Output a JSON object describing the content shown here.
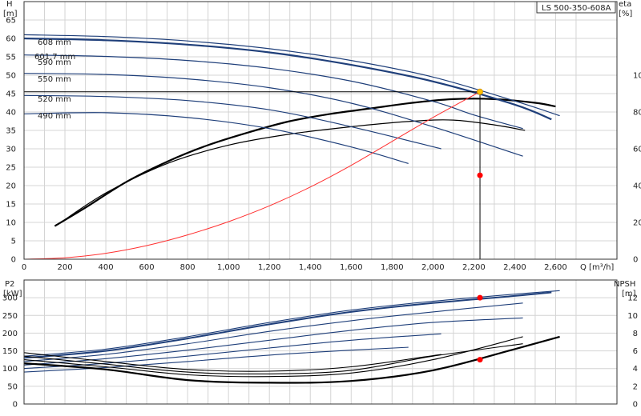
{
  "title_box": "LS 500-350-608A",
  "colors": {
    "curve": "#1f3f7a",
    "efficiency": "#000000",
    "system": "#ff3030",
    "duty_line": "#000000",
    "point_red": "#ff0000",
    "point_yellow": "#ffc000",
    "grid": "#d4d4d4"
  },
  "chart_data": [
    {
      "type": "line",
      "name": "head-efficiency",
      "xlabel": "Q [m³/h]",
      "ylabel_left": "H",
      "ylabel_left_unit": "[m]",
      "ylabel_right": "eta",
      "ylabel_right_unit": "[%]",
      "xlim": [
        0,
        2900
      ],
      "ylim_left": [
        0,
        70
      ],
      "ylim_right": [
        0,
        140
      ],
      "x_ticks": [
        0,
        200,
        400,
        600,
        800,
        1000,
        1200,
        1400,
        1600,
        1800,
        2000,
        2200,
        2400,
        2600
      ],
      "x_tick_labels": [
        "0",
        "200",
        "400",
        "600",
        "800",
        "1,000",
        "1,200",
        "1,400",
        "1,600",
        "1,800",
        "2,000",
        "2,200",
        "2,400",
        "2,600"
      ],
      "y_ticks_left": [
        0,
        5,
        10,
        15,
        20,
        25,
        30,
        35,
        40,
        45,
        50,
        55,
        60,
        65
      ],
      "y_ticks_right": [
        0,
        20,
        40,
        60,
        80,
        100
      ],
      "grid": true,
      "head_curves": [
        {
          "name": "608 mm",
          "x": [
            0,
            400,
            800,
            1200,
            1600,
            2000,
            2400,
            2620
          ],
          "y": [
            61,
            60.5,
            59.3,
            57.2,
            54,
            49.5,
            43,
            39
          ]
        },
        {
          "name": "601.7 mm",
          "x": [
            0,
            400,
            800,
            1200,
            1600,
            2000,
            2400,
            2580
          ],
          "y": [
            60,
            59.5,
            58.3,
            56.2,
            52.8,
            48.3,
            42,
            38
          ]
        },
        {
          "name": "590 mm",
          "x": [
            0,
            400,
            800,
            1200,
            1600,
            2000,
            2200,
            2440
          ],
          "y": [
            55.5,
            55.1,
            54,
            51.9,
            48.4,
            42.9,
            39.2,
            35.5
          ]
        },
        {
          "name": "550 mm",
          "x": [
            0,
            400,
            800,
            1200,
            1600,
            2000,
            2440
          ],
          "y": [
            50.5,
            50.2,
            49,
            46.6,
            42.4,
            36,
            28
          ]
        },
        {
          "name": "520 mm",
          "x": [
            0,
            400,
            800,
            1200,
            1600,
            2040
          ],
          "y": [
            44.5,
            44.2,
            43.1,
            40.6,
            36,
            30
          ]
        },
        {
          "name": "490 mm",
          "x": [
            0,
            400,
            800,
            1200,
            1600,
            1880
          ],
          "y": [
            39.5,
            39.8,
            38.5,
            35.5,
            30.5,
            26
          ]
        }
      ],
      "efficiency_curves": [
        {
          "x": [
            150,
            300,
            500,
            700,
            900,
            1100,
            1300,
            1500,
            1700,
            1900,
            2100,
            2300,
            2500,
            2600
          ],
          "y": [
            9,
            14,
            21,
            26.5,
            31,
            34.5,
            37.5,
            39.5,
            41,
            42.5,
            43.5,
            43.5,
            42.5,
            41.5
          ]
        },
        {
          "x": [
            180,
            400,
            700,
            1000,
            1300,
            1600,
            1900,
            2100,
            2300,
            2450
          ],
          "y": [
            10,
            18,
            26,
            31,
            34,
            36,
            37.5,
            37.8,
            36.5,
            35
          ]
        }
      ],
      "system_curve": {
        "x": [
          0,
          200,
          400,
          600,
          800,
          1000,
          1200,
          1400,
          1600,
          1800,
          2000,
          2230
        ],
        "y": [
          0,
          0.4,
          1.6,
          3.7,
          6.6,
          10.2,
          14.5,
          19.6,
          25.5,
          32,
          38.5,
          45.5
        ]
      },
      "duty_point": {
        "q": 2230,
        "h": 45.5,
        "eta": 45.5
      }
    },
    {
      "type": "line",
      "name": "power-npsh",
      "xlabel": "",
      "ylabel_left": "P2",
      "ylabel_left_unit": "[kW]",
      "ylabel_right": "NPSH",
      "ylabel_right_unit": "[m]",
      "xlim": [
        0,
        2900
      ],
      "ylim_left": [
        0,
        350
      ],
      "ylim_right": [
        0,
        14
      ],
      "y_ticks_left": [
        0,
        50,
        100,
        150,
        200,
        250,
        300
      ],
      "y_ticks_right": [
        0,
        2,
        4,
        6,
        8,
        10,
        12
      ],
      "grid": true,
      "power_curves": [
        {
          "x": [
            0,
            400,
            800,
            1200,
            1600,
            2000,
            2400,
            2620
          ],
          "y": [
            135,
            155,
            190,
            230,
            265,
            290,
            310,
            320
          ]
        },
        {
          "x": [
            0,
            400,
            800,
            1200,
            1600,
            2000,
            2400,
            2580
          ],
          "y": [
            130,
            150,
            185,
            225,
            260,
            285,
            305,
            315
          ]
        },
        {
          "x": [
            0,
            400,
            800,
            1200,
            1600,
            2000,
            2440
          ],
          "y": [
            120,
            140,
            170,
            205,
            235,
            260,
            285
          ]
        },
        {
          "x": [
            0,
            400,
            800,
            1200,
            1600,
            2000,
            2440
          ],
          "y": [
            110,
            128,
            152,
            180,
            208,
            230,
            243
          ]
        },
        {
          "x": [
            0,
            400,
            800,
            1200,
            1600,
            2040
          ],
          "y": [
            100,
            115,
            135,
            158,
            180,
            198
          ]
        },
        {
          "x": [
            0,
            400,
            800,
            1200,
            1600,
            1880
          ],
          "y": [
            90,
            103,
            120,
            138,
            152,
            160
          ]
        }
      ],
      "npsh_curves": [
        {
          "x": [
            0,
            400,
            800,
            1200,
            1600,
            2000,
            2400,
            2620
          ],
          "y": [
            4.6,
            3.9,
            2.7,
            2.4,
            2.6,
            3.8,
            6.2,
            7.6
          ]
        },
        {
          "x": [
            0,
            400,
            800,
            1200,
            1600,
            2000,
            2440
          ],
          "y": [
            5.0,
            4.2,
            3.3,
            3.1,
            3.5,
            5.0,
            7.6
          ]
        },
        {
          "x": [
            0,
            400,
            800,
            1200,
            1600,
            2000,
            2440
          ],
          "y": [
            5.4,
            4.5,
            3.6,
            3.4,
            3.8,
            5.4,
            6.8
          ]
        },
        {
          "x": [
            0,
            400,
            800,
            1200,
            1600,
            2040
          ],
          "y": [
            5.8,
            4.8,
            3.9,
            3.7,
            4.2,
            5.6
          ]
        }
      ],
      "duty_points": [
        {
          "q": 2230,
          "p2": 300
        },
        {
          "q": 2230,
          "npsh": 5.0
        }
      ]
    }
  ],
  "diameter_labels": [
    "608 mm",
    "601.7 mm",
    "590 mm",
    "550 mm",
    "520 mm",
    "490 mm"
  ]
}
